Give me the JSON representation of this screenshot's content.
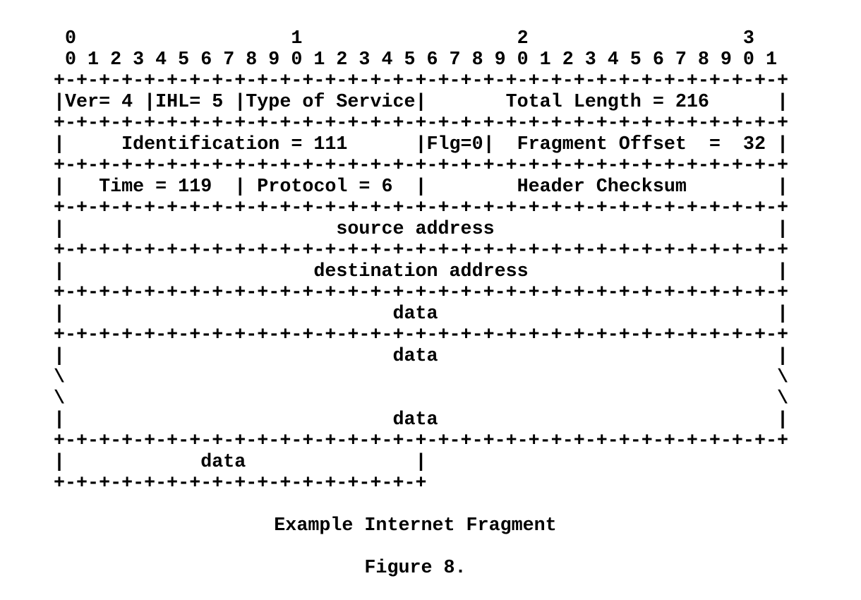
{
  "page": {
    "background_color": "#ffffff",
    "text_color": "#000000"
  },
  "diagram": {
    "kind": "ascii-packet-header-diagram",
    "bit_ruler": {
      "tens_row": "0 1 2 3",
      "bits_row": "0 1 2 3 4 5 6 7 8 9 0 1 2 3 4 5 6 7 8 9 0 1 2 3 4 5 6 7 8 9 0 1"
    },
    "fields": {
      "version": "Ver= 4",
      "ihl": "IHL= 5",
      "type_of_service": "Type of Service",
      "total_length": "Total Length = 216",
      "identification": "Identification = 111",
      "flags": "Flg=0",
      "fragment_offset": "Fragment Offset  =  32",
      "time_to_live": "Time = 119",
      "protocol": "Protocol = 6",
      "header_checksum": "Header Checksum",
      "source_address": "source address",
      "destination_address": "destination address",
      "data_label": "data"
    },
    "lines": [
      "  0                   1                   2                   3",
      "  0 1 2 3 4 5 6 7 8 9 0 1 2 3 4 5 6 7 8 9 0 1 2 3 4 5 6 7 8 9 0 1",
      " +-+-+-+-+-+-+-+-+-+-+-+-+-+-+-+-+-+-+-+-+-+-+-+-+-+-+-+-+-+-+-+-+",
      " |Ver= 4 |IHL= 5 |Type of Service|       Total Length = 216      |",
      " +-+-+-+-+-+-+-+-+-+-+-+-+-+-+-+-+-+-+-+-+-+-+-+-+-+-+-+-+-+-+-+-+",
      " |     Identification = 111      |Flg=0|  Fragment Offset  =  32 |",
      " +-+-+-+-+-+-+-+-+-+-+-+-+-+-+-+-+-+-+-+-+-+-+-+-+-+-+-+-+-+-+-+-+",
      " |   Time = 119  | Protocol = 6  |        Header Checksum        |",
      " +-+-+-+-+-+-+-+-+-+-+-+-+-+-+-+-+-+-+-+-+-+-+-+-+-+-+-+-+-+-+-+-+",
      " |                        source address                         |",
      " +-+-+-+-+-+-+-+-+-+-+-+-+-+-+-+-+-+-+-+-+-+-+-+-+-+-+-+-+-+-+-+-+",
      " |                      destination address                      |",
      " +-+-+-+-+-+-+-+-+-+-+-+-+-+-+-+-+-+-+-+-+-+-+-+-+-+-+-+-+-+-+-+-+",
      " |                             data                              |",
      " +-+-+-+-+-+-+-+-+-+-+-+-+-+-+-+-+-+-+-+-+-+-+-+-+-+-+-+-+-+-+-+-+",
      " |                             data                              |",
      " \\                                                               \\",
      " \\                                                               \\",
      " |                             data                              |",
      " +-+-+-+-+-+-+-+-+-+-+-+-+-+-+-+-+-+-+-+-+-+-+-+-+-+-+-+-+-+-+-+-+",
      " |            data               |",
      " +-+-+-+-+-+-+-+-+-+-+-+-+-+-+-+-+"
    ],
    "caption": "Example Internet Fragment",
    "figure_label": "Figure 8."
  }
}
